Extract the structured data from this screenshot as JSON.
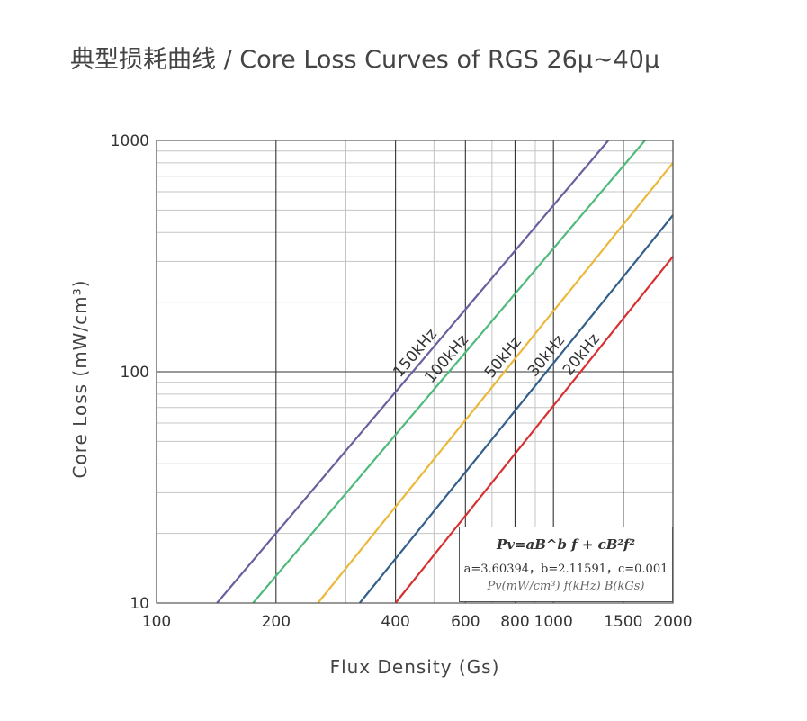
{
  "title": "典型损耗曲线 / Core Loss Curves of RGS 26μ~40μ",
  "chart_data": {
    "type": "line",
    "title": "典型损耗曲线 / Core Loss Curves of RGS 26μ~40μ",
    "xlabel": "Flux Density (Gs)",
    "ylabel": "Core Loss (mW/cm³)",
    "x_scale": "log",
    "y_scale": "log",
    "xlim": [
      100,
      2000
    ],
    "ylim": [
      10,
      1000
    ],
    "x_ticks": [
      100,
      200,
      400,
      600,
      800,
      1000,
      1500,
      2000
    ],
    "x_tick_labels": [
      "100",
      "200",
      "400",
      "600",
      "800",
      "1000",
      "1500",
      "2000"
    ],
    "y_ticks": [
      10,
      100,
      1000
    ],
    "y_tick_labels": [
      "10",
      "100",
      "1000"
    ],
    "grid": true,
    "formula": {
      "equation": "Pv=aB^b f + cB²f²",
      "coefficients": "a=3.60394，b=2.11591，c=0.001",
      "units": "Pv(mW/cm³) f(kHz) B(kGs)",
      "a": 3.60394,
      "b": 2.11591,
      "c": 0.001
    },
    "series": [
      {
        "name": "150kHz",
        "frequency_khz": 150,
        "color": "#6a5f9e",
        "x_range": [
          142,
          1375
        ],
        "values_at_range_ends": [
          10,
          1000
        ]
      },
      {
        "name": "100kHz",
        "frequency_khz": 100,
        "color": "#4fba7c",
        "x_range": [
          175,
          1700
        ],
        "values_at_range_ends": [
          10,
          1000
        ]
      },
      {
        "name": "50kHz",
        "frequency_khz": 50,
        "color": "#ecb83a",
        "x_range": [
          255,
          2000
        ],
        "values_at_range_ends": [
          10,
          800
        ]
      },
      {
        "name": "30kHz",
        "frequency_khz": 30,
        "color": "#335f8a",
        "x_range": [
          325,
          2000
        ],
        "values_at_range_ends": [
          10,
          475
        ]
      },
      {
        "name": "20kHz",
        "frequency_khz": 20,
        "color": "#d83030",
        "x_range": [
          400,
          2000
        ],
        "values_at_range_ends": [
          10,
          315
        ]
      }
    ]
  }
}
